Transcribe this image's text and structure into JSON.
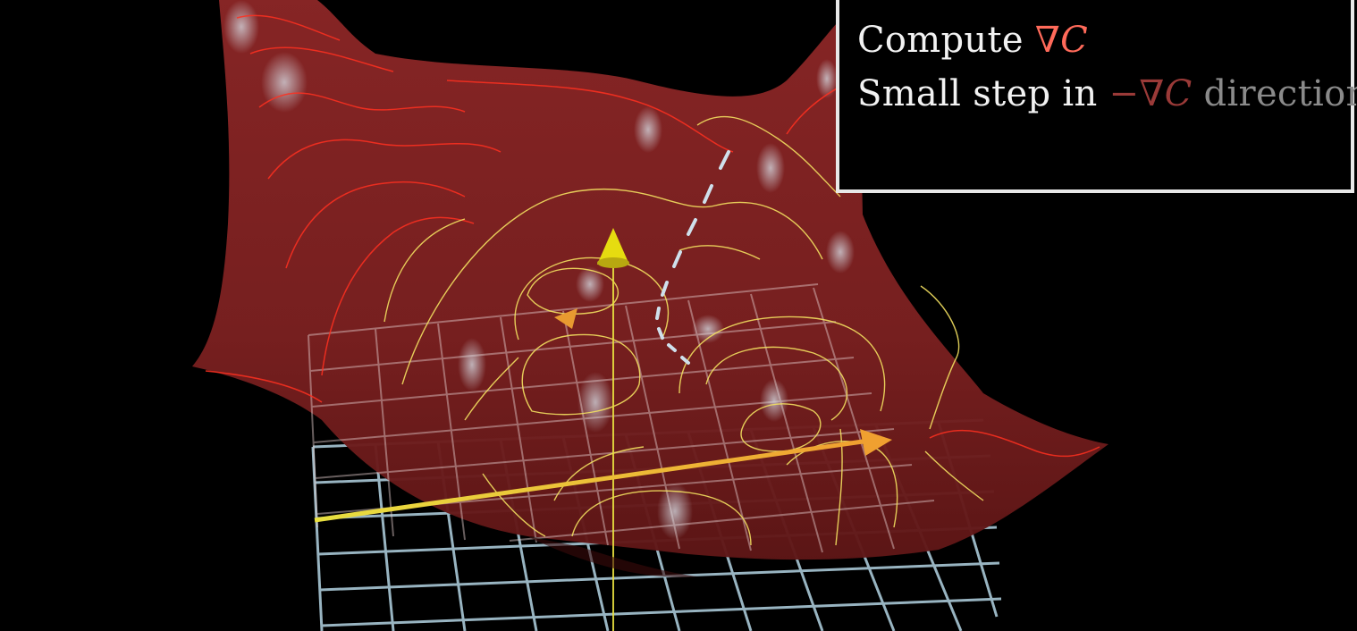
{
  "caption": {
    "line1": {
      "prefix": "Compute ",
      "nabla": "∇",
      "symbol": "C"
    },
    "line2": {
      "prefix": "Small step in ",
      "minus": "−",
      "nabla": "∇",
      "symbol": "C",
      "suffix": " direction"
    }
  },
  "colors": {
    "background": "#000000",
    "surface": "#7a2020",
    "grad_text": "#ff6a5a",
    "neg_grad_text": "#9a3a38",
    "fade_text": "#8a8a8a",
    "contour_warm": "#ff3020",
    "contour_cool": "#f3e060",
    "grid": "#a9c8d6",
    "gradient_arrow": "#f0a030",
    "vertical_arrow": "#e8e020",
    "path_dashes": "#cfe0ec"
  }
}
